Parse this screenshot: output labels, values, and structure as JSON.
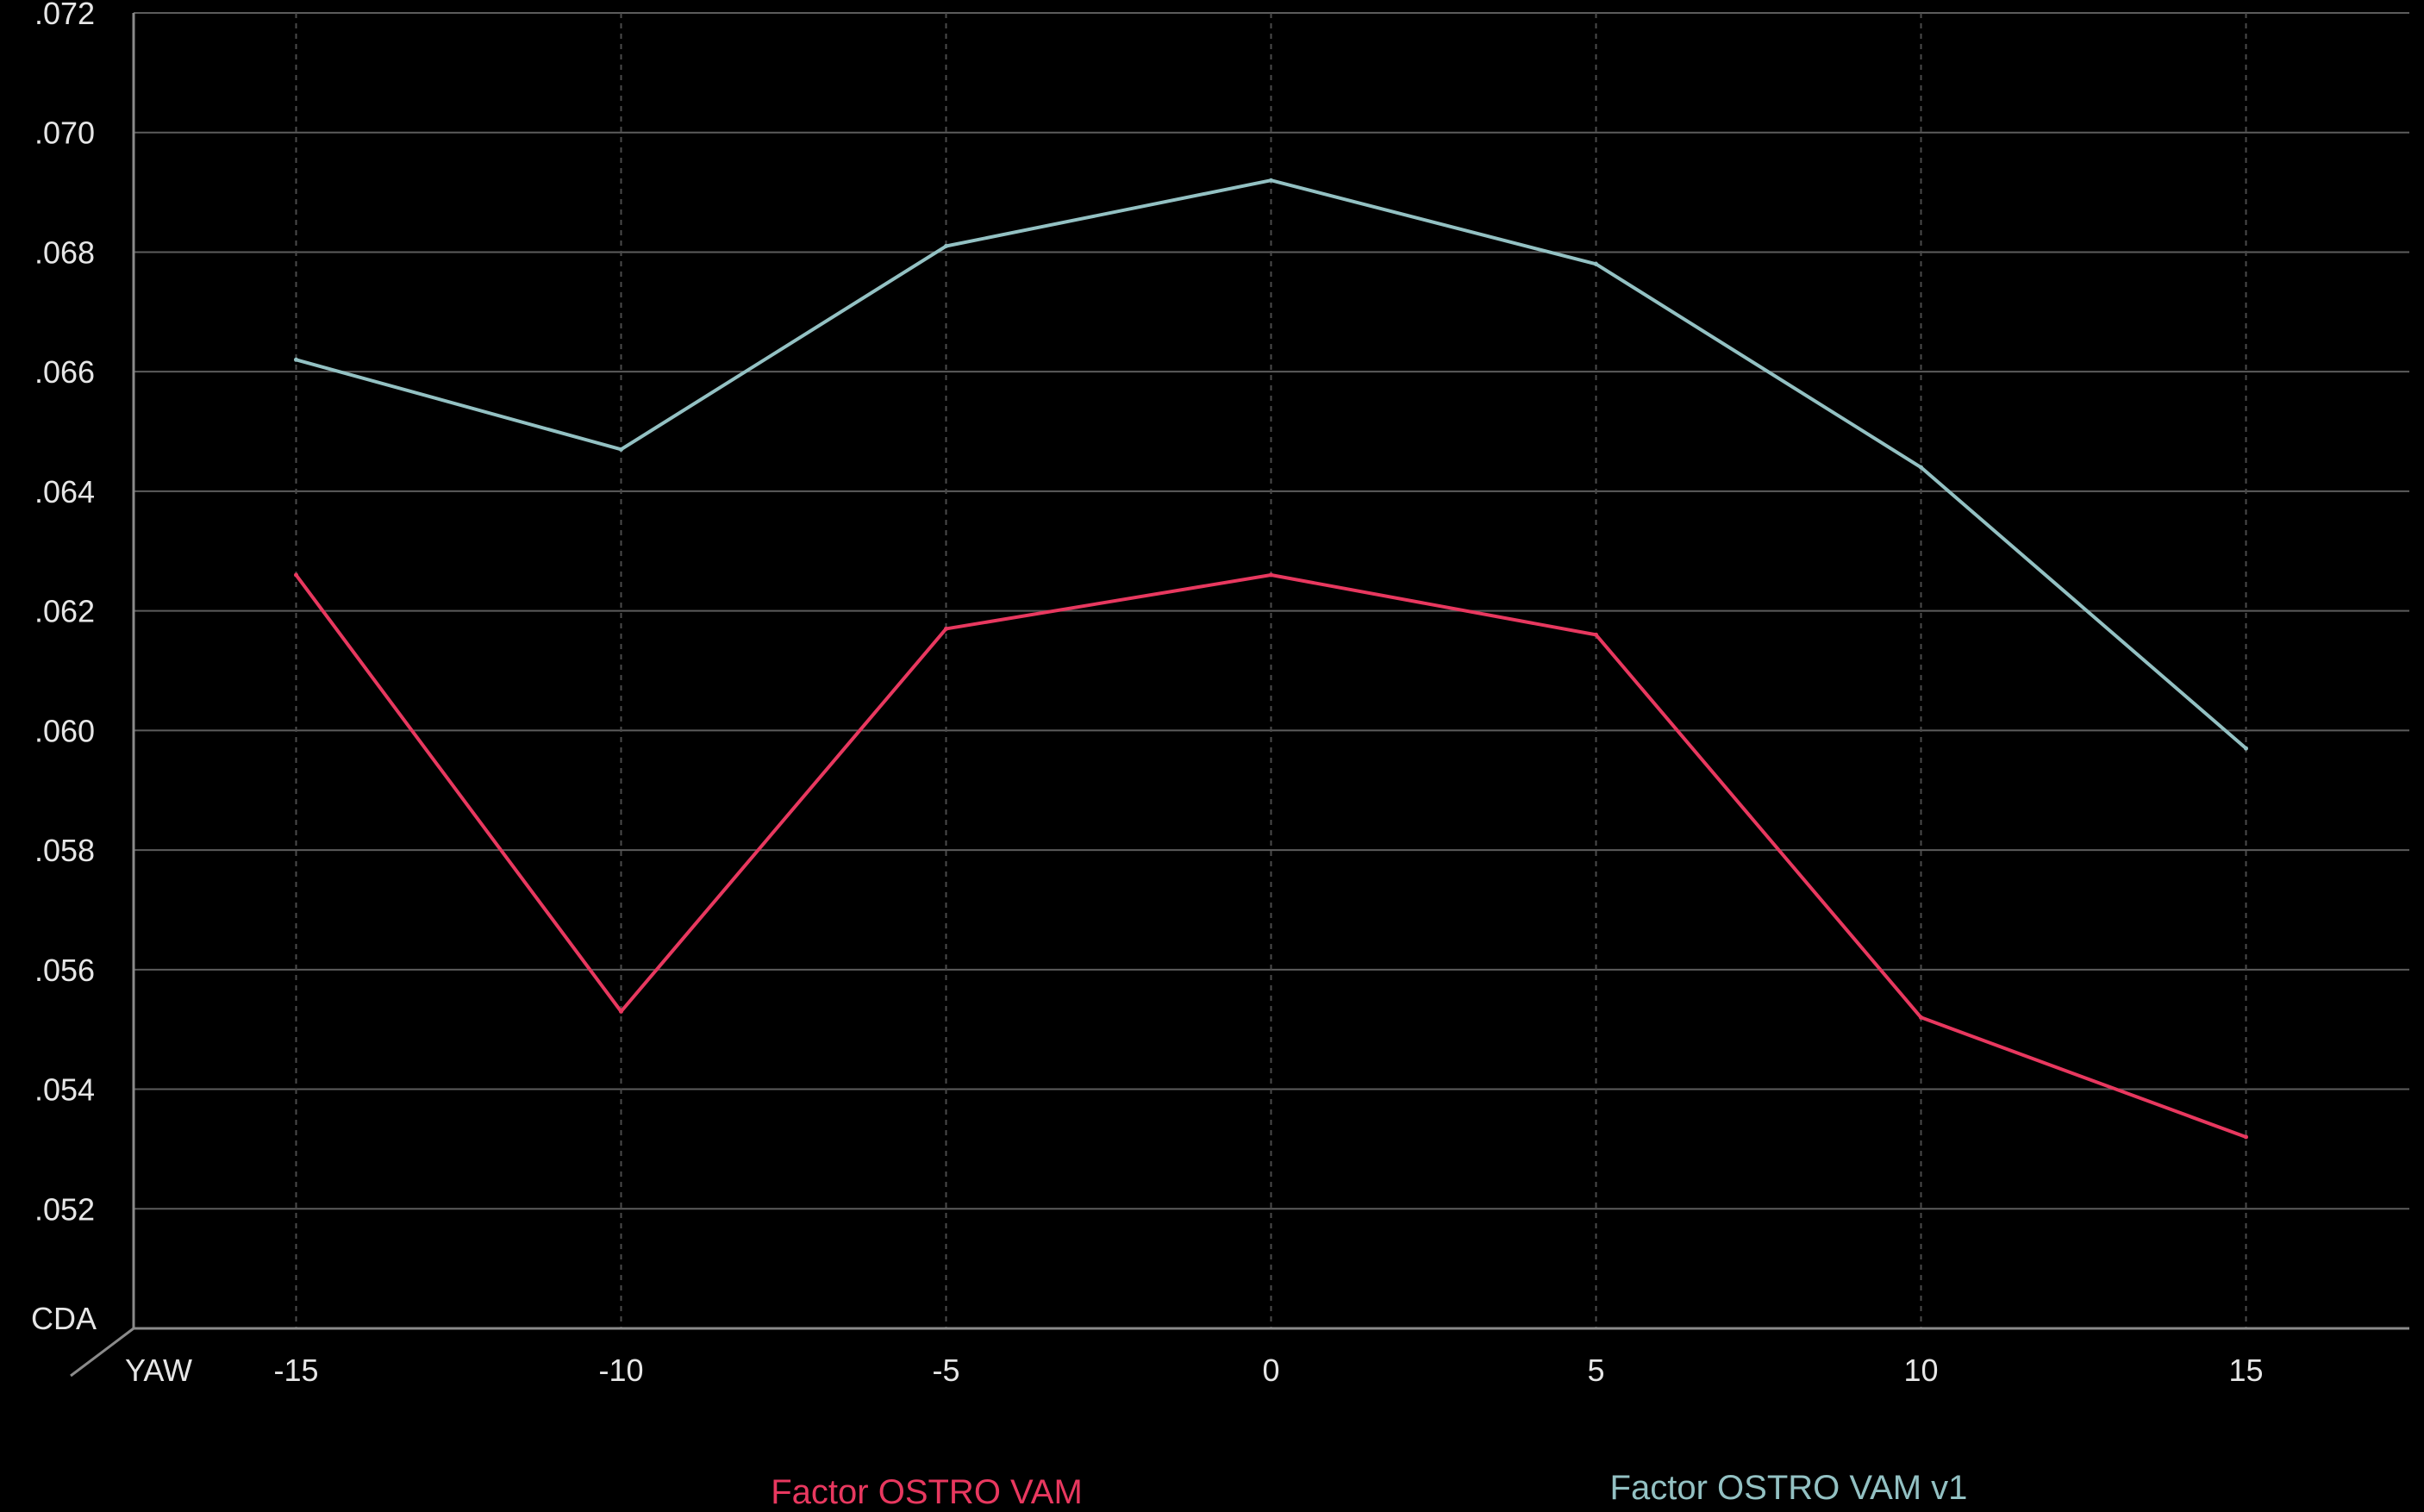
{
  "chart_data": {
    "type": "line",
    "title": "",
    "xlabel": "YAW",
    "ylabel": "CDA",
    "x": [
      -15,
      -10,
      -5,
      0,
      5,
      10,
      15
    ],
    "xlim": [
      -17.5,
      17.5
    ],
    "ylim": [
      0.05,
      0.072
    ],
    "x_ticks": [
      "-15",
      "-10",
      "-5",
      "0",
      "5",
      "10",
      "15"
    ],
    "y_ticks": [
      ".052",
      ".054",
      ".056",
      ".058",
      ".060",
      ".062",
      ".064",
      ".066",
      ".068",
      ".070",
      ".072"
    ],
    "y_tick_values": [
      0.052,
      0.054,
      0.056,
      0.058,
      0.06,
      0.062,
      0.064,
      0.066,
      0.068,
      0.07,
      0.072
    ],
    "grid": true,
    "legend_position": "bottom",
    "series": [
      {
        "name": "Factor OSTRO VAM",
        "color": "#e8385f",
        "values": [
          0.0626,
          0.0553,
          0.0617,
          0.0626,
          0.0616,
          0.0552,
          0.0532
        ]
      },
      {
        "name": "Factor OSTRO VAM v1",
        "color": "#93c1c3",
        "values": [
          0.0662,
          0.0647,
          0.0681,
          0.0692,
          0.0678,
          0.0644,
          0.0597
        ]
      }
    ]
  },
  "colors": {
    "background": "#000000",
    "grid": "#5c5c5c",
    "axis": "#8a8a8a",
    "text": "#e6e6e6"
  }
}
